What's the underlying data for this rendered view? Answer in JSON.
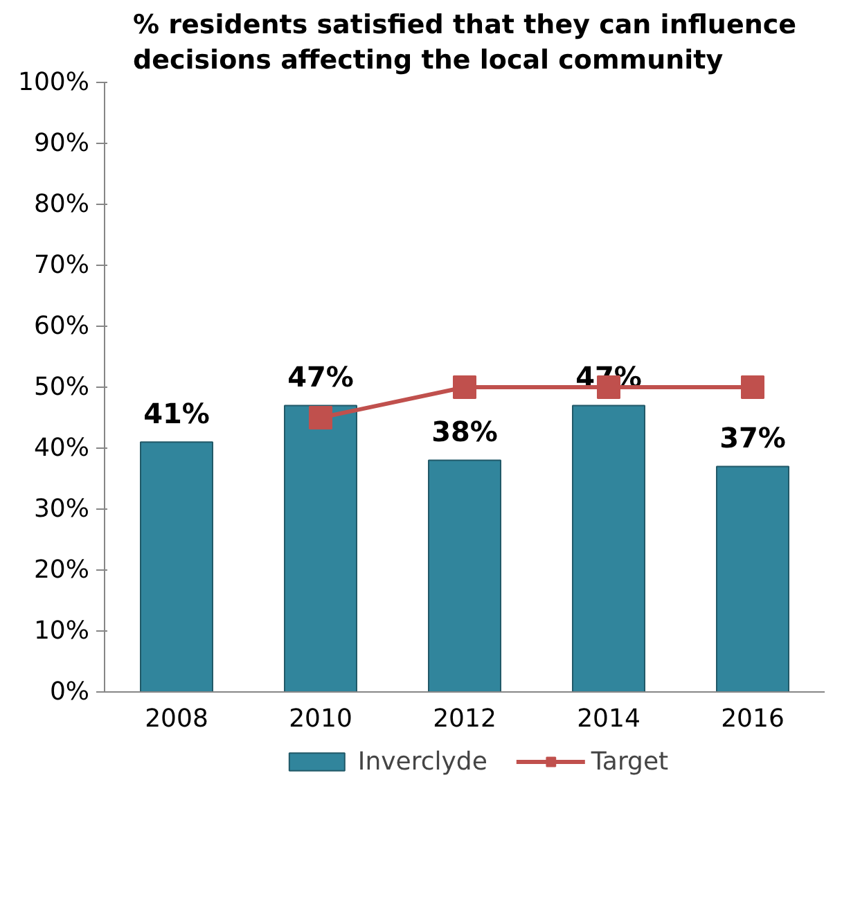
{
  "chart_data": {
    "type": "bar",
    "title": "% residents satisfied that they can influence decisions affecting the local community",
    "categories": [
      "2008",
      "2010",
      "2012",
      "2014",
      "2016"
    ],
    "series": [
      {
        "name": "Inverclyde",
        "type": "bar",
        "color": "#31859c",
        "values": [
          41,
          47,
          38,
          47,
          37
        ],
        "value_labels": [
          "41%",
          "47%",
          "38%",
          "47%",
          "37%"
        ]
      },
      {
        "name": "Target",
        "type": "line",
        "color": "#c0504d",
        "values": [
          null,
          45,
          50,
          50,
          50
        ],
        "marker": "square"
      }
    ],
    "ylim": [
      0,
      100
    ],
    "yticks": [
      {
        "value": 0,
        "label": "0%"
      },
      {
        "value": 10,
        "label": "10%"
      },
      {
        "value": 20,
        "label": "20%"
      },
      {
        "value": 30,
        "label": "30%"
      },
      {
        "value": 40,
        "label": "40%"
      },
      {
        "value": 50,
        "label": "50%"
      },
      {
        "value": 60,
        "label": "60%"
      },
      {
        "value": 70,
        "label": "70%"
      },
      {
        "value": 80,
        "label": "80%"
      },
      {
        "value": 90,
        "label": "90%"
      },
      {
        "value": 100,
        "label": "100%"
      }
    ],
    "grid": false,
    "legend": "bottom"
  }
}
